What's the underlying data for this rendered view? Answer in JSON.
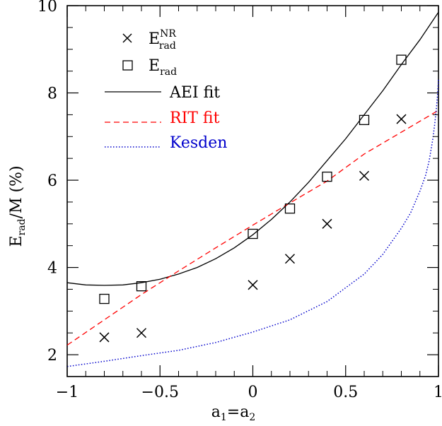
{
  "chart_data": {
    "type": "scatter",
    "xlabel": {
      "main": "a",
      "sub1": "1",
      "eq": "=a",
      "sub2": "2"
    },
    "ylabel": {
      "main": "E",
      "sub": "rad",
      "rest": "/M (%)"
    },
    "xlim": [
      -1,
      1
    ],
    "ylim": [
      1.5,
      10
    ],
    "x_ticks": [
      -1,
      -0.5,
      0,
      0.5,
      1
    ],
    "x_tick_labels": [
      "−1",
      "−0.5",
      "0",
      "0.5",
      "1"
    ],
    "y_ticks": [
      2,
      4,
      6,
      8,
      10
    ],
    "y_tick_labels": [
      "2",
      "4",
      "6",
      "8",
      "10"
    ],
    "grid": false,
    "legend_position": "top-left",
    "series": [
      {
        "name": "E_rad^NR",
        "legend": {
          "main": "E",
          "sup": "NR",
          "sub": "rad"
        },
        "marker": "x",
        "color": "#000000",
        "x": [
          -0.8,
          -0.6,
          0.0,
          0.2,
          0.4,
          0.6,
          0.8
        ],
        "y": [
          2.4,
          2.5,
          3.6,
          4.2,
          5.0,
          6.1,
          7.4
        ]
      },
      {
        "name": "E_rad",
        "legend": {
          "main": "E",
          "sub": "rad"
        },
        "marker": "square",
        "color": "#000000",
        "x": [
          -0.8,
          -0.6,
          0.0,
          0.2,
          0.4,
          0.6,
          0.8
        ],
        "y": [
          3.28,
          3.57,
          4.77,
          5.35,
          6.08,
          7.38,
          8.76
        ]
      },
      {
        "name": "AEI fit",
        "type": "line",
        "style": "solid",
        "color": "#000000",
        "x": [
          -1.0,
          -0.9,
          -0.8,
          -0.7,
          -0.6,
          -0.5,
          -0.4,
          -0.3,
          -0.2,
          -0.1,
          0.0,
          0.1,
          0.2,
          0.3,
          0.4,
          0.5,
          0.6,
          0.7,
          0.8,
          0.9,
          1.0
        ],
        "y": [
          3.65,
          3.6,
          3.59,
          3.6,
          3.65,
          3.73,
          3.85,
          4.0,
          4.2,
          4.45,
          4.75,
          5.1,
          5.5,
          5.95,
          6.45,
          6.95,
          7.5,
          8.05,
          8.65,
          9.22,
          9.85
        ]
      },
      {
        "name": "RIT fit",
        "type": "line",
        "style": "dashed",
        "color": "#ff0000",
        "x": [
          -1.0,
          -0.8,
          -0.6,
          -0.4,
          -0.2,
          0.0,
          0.2,
          0.4,
          0.6,
          0.8,
          1.0
        ],
        "y": [
          2.22,
          2.8,
          3.38,
          3.92,
          4.45,
          4.97,
          5.48,
          5.98,
          6.6,
          7.1,
          7.6
        ]
      },
      {
        "name": "Kesden",
        "type": "line",
        "style": "dotted",
        "color": "#0000cc",
        "x": [
          -1.0,
          -0.8,
          -0.6,
          -0.4,
          -0.2,
          0.0,
          0.2,
          0.4,
          0.6,
          0.7,
          0.8,
          0.85,
          0.9,
          0.93,
          0.95,
          0.97,
          0.98,
          0.99,
          0.995,
          1.0
        ],
        "y": [
          1.73,
          1.85,
          1.98,
          2.1,
          2.28,
          2.52,
          2.8,
          3.22,
          3.85,
          4.3,
          4.9,
          5.25,
          5.75,
          6.1,
          6.45,
          6.95,
          7.3,
          7.7,
          7.95,
          8.3
        ]
      }
    ]
  }
}
